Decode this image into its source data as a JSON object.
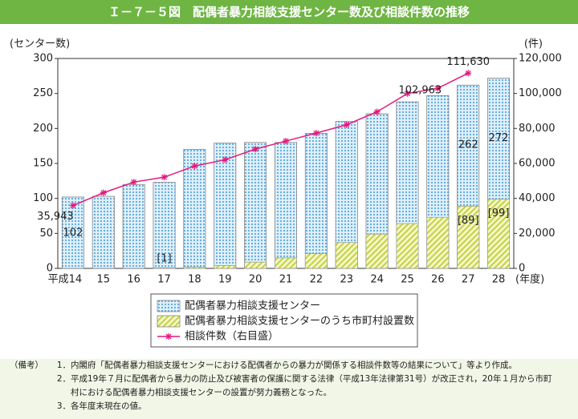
{
  "header": {
    "title": "Ｉ－７－５図　配偶者暴力相談支援センター数及び相談件数の推移"
  },
  "chart_data": {
    "type": "bar",
    "y_label": "(センター数)",
    "y2_label": "(件)",
    "x_label": "(年度)",
    "categories": [
      "平成14",
      "15",
      "16",
      "17",
      "18",
      "19",
      "20",
      "21",
      "22",
      "23",
      "24",
      "25",
      "26",
      "27",
      "28"
    ],
    "series": [
      {
        "name": "配偶者暴力相談支援センター",
        "color": "#6ab0de",
        "values": [
          102,
          103,
          120,
          123,
          170,
          179,
          180,
          180,
          193,
          210,
          221,
          238,
          247,
          262,
          272
        ],
        "value_labels": [
          "102",
          null,
          null,
          null,
          null,
          null,
          null,
          null,
          null,
          null,
          null,
          null,
          null,
          "262",
          "272"
        ]
      },
      {
        "name": "配偶者暴力相談支援センターのうち市町村設置数",
        "color": "#c8d84a",
        "values": [
          0,
          0,
          0,
          1,
          2,
          4,
          9,
          15,
          21,
          37,
          49,
          64,
          73,
          89,
          99
        ],
        "value_labels": [
          null,
          null,
          null,
          "[1]",
          null,
          null,
          null,
          null,
          null,
          null,
          null,
          null,
          null,
          "[89]",
          "[99]"
        ]
      },
      {
        "name": "相談件数（右目盛）",
        "type": "line",
        "axis": "y2",
        "color": "#e5197d",
        "values": [
          35943,
          43225,
          49329,
          52145,
          58528,
          62078,
          68196,
          72792,
          77334,
          82099,
          89490,
          99961,
          102963,
          111630,
          null
        ],
        "value_labels": [
          "35,943",
          null,
          null,
          null,
          null,
          null,
          null,
          null,
          null,
          null,
          null,
          null,
          "102,963",
          "111,630",
          null
        ]
      }
    ],
    "ylim": [
      0,
      300
    ],
    "yticks": [
      0,
      50,
      100,
      150,
      200,
      250,
      300
    ],
    "y2lim": [
      0,
      120000
    ],
    "y2ticks": [
      0,
      {
        "value": 20000,
        "label": "20,000"
      },
      {
        "value": 40000,
        "label": "40,000"
      },
      {
        "value": 60000,
        "label": "60,000"
      },
      {
        "value": 80000,
        "label": "80,000"
      },
      {
        "value": 100000,
        "label": "100,000"
      },
      {
        "value": 120000,
        "label": "120,000"
      }
    ]
  },
  "notes": {
    "label": "（備考）",
    "items": [
      {
        "num": "1．",
        "text": "内閣府「配偶者暴力相談支援センターにおける配偶者からの暴力が関係する相談件数等の結果について」等より作成。"
      },
      {
        "num": "2．",
        "text": "平成19年７月に配偶者から暴力の防止及び被害者の保護に関する法律（平成13年法律第31号）が改正され，20年１月から市町村における配偶者暴力相談支援センターの設置が努力義務となった。"
      },
      {
        "num": "3．",
        "text": "各年度末現在の値。"
      }
    ]
  }
}
